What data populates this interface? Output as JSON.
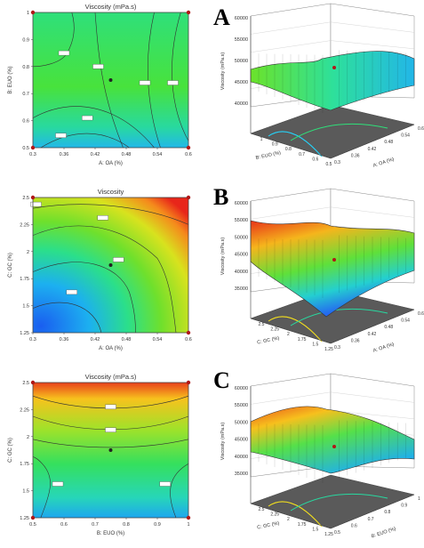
{
  "panels": [
    {
      "letter": "A",
      "contour": {
        "title": "Viscosity (mPa.s)",
        "xlabel": "A: OA (%)",
        "ylabel": "B: EUO (%)",
        "xticks": [
          "0.3",
          "0.36",
          "0.42",
          "0.48",
          "0.54",
          "0.6"
        ],
        "yticks": [
          "0.5",
          "0.6",
          "0.7",
          "0.8",
          "0.9",
          "1"
        ]
      },
      "surface": {
        "zlabel": "Viscosity (mPa.s)",
        "zticks": [
          "60000",
          "55000",
          "50000",
          "45000",
          "40000"
        ],
        "xlabel": "A: OA (%)",
        "xticks": [
          "0.3",
          "0.36",
          "0.42",
          "0.48",
          "0.54",
          "0.6"
        ],
        "ylabel": "B: EUO (%)",
        "yticks": [
          "1",
          "0.9",
          "0.8",
          "0.7",
          "0.6",
          "0.5"
        ]
      }
    },
    {
      "letter": "B",
      "contour": {
        "title": "Viscosity",
        "xlabel": "A: OA (%)",
        "ylabel": "C: GC (%)",
        "xticks": [
          "0.3",
          "0.36",
          "0.42",
          "0.48",
          "0.54",
          "0.6"
        ],
        "yticks": [
          "1.25",
          "1.5",
          "1.75",
          "2",
          "2.25",
          "2.5"
        ]
      },
      "surface": {
        "zlabel": "Viscosity (mPa.s)",
        "zticks": [
          "60000",
          "55000",
          "50000",
          "45000",
          "40000",
          "35000"
        ],
        "xlabel": "A: OA (%)",
        "xticks": [
          "0.3",
          "0.36",
          "0.42",
          "0.48",
          "0.54",
          "0.6"
        ],
        "ylabel": "C: GC (%)",
        "yticks": [
          "2.5",
          "2.25",
          "2",
          "1.75",
          "1.5",
          "1.25"
        ]
      }
    },
    {
      "letter": "C",
      "contour": {
        "title": "Viscosity (mPa.s)",
        "xlabel": "B: EUO (%)",
        "ylabel": "C: GC (%)",
        "xticks": [
          "0.5",
          "0.6",
          "0.7",
          "0.8",
          "0.9",
          "1"
        ],
        "yticks": [
          "1.25",
          "1.5",
          "1.75",
          "2",
          "2.25",
          "2.5"
        ]
      },
      "surface": {
        "zlabel": "Viscosity (mPa.s)",
        "zticks": [
          "60000",
          "55000",
          "50000",
          "45000",
          "40000",
          "35000"
        ],
        "xlabel": "B: EUO (%)",
        "xticks": [
          "0.5",
          "0.6",
          "0.7",
          "0.8",
          "0.9",
          "1"
        ],
        "ylabel": "C: GC (%)",
        "yticks": [
          "2.5",
          "2.25",
          "2",
          "1.75",
          "1.5",
          "1.25"
        ]
      }
    }
  ],
  "chart_data": [
    {
      "type": "heatmap",
      "panel": "A",
      "title": "Viscosity (mPa.s)",
      "xlabel": "A: OA (%)",
      "ylabel": "B: EUO (%)",
      "xlim": [
        0.3,
        0.6
      ],
      "ylim": [
        0.5,
        1
      ],
      "design_points": [
        [
          0.3,
          0.5
        ],
        [
          0.3,
          1
        ],
        [
          0.6,
          0.5
        ],
        [
          0.6,
          1
        ],
        [
          0.45,
          0.75
        ]
      ],
      "center_point": [
        0.45,
        0.75
      ]
    },
    {
      "type": "heatmap",
      "panel": "B",
      "title": "Viscosity",
      "xlabel": "A: OA (%)",
      "ylabel": "C: GC (%)",
      "xlim": [
        0.3,
        0.6
      ],
      "ylim": [
        1.25,
        2.5
      ],
      "design_points": [
        [
          0.3,
          2.5
        ],
        [
          0.6,
          2.5
        ],
        [
          0.6,
          1.25
        ],
        [
          0.45,
          1.875
        ]
      ],
      "center_point": [
        0.45,
        1.875
      ]
    },
    {
      "type": "heatmap",
      "panel": "C",
      "title": "Viscosity (mPa.s)",
      "xlabel": "B: EUO (%)",
      "ylabel": "C: GC (%)",
      "xlim": [
        0.5,
        1
      ],
      "ylim": [
        1.25,
        2.5
      ],
      "design_points": [
        [
          0.5,
          2.5
        ],
        [
          1,
          2.5
        ],
        [
          0.5,
          1.25
        ],
        [
          1,
          1.25
        ],
        [
          0.75,
          1.875
        ]
      ],
      "center_point": [
        0.75,
        1.875
      ]
    },
    {
      "type": "area",
      "panel": "A",
      "zlabel": "Viscosity (mPa.s)",
      "zlim": [
        40000,
        60000
      ],
      "xlabel": "A: OA (%)",
      "xlim": [
        0.3,
        0.6
      ],
      "ylabel": "B: EUO (%)",
      "ylim": [
        0.5,
        1
      ]
    },
    {
      "type": "area",
      "panel": "B",
      "zlabel": "Viscosity (mPa.s)",
      "zlim": [
        35000,
        60000
      ],
      "xlabel": "A: OA (%)",
      "xlim": [
        0.3,
        0.6
      ],
      "ylabel": "C: GC (%)",
      "ylim": [
        1.25,
        2.5
      ]
    },
    {
      "type": "area",
      "panel": "C",
      "zlabel": "Viscosity (mPa.s)",
      "zlim": [
        35000,
        60000
      ],
      "xlabel": "B: EUO (%)",
      "xlim": [
        0.5,
        1
      ],
      "ylabel": "C: GC (%)",
      "ylim": [
        1.25,
        2.5
      ]
    }
  ]
}
